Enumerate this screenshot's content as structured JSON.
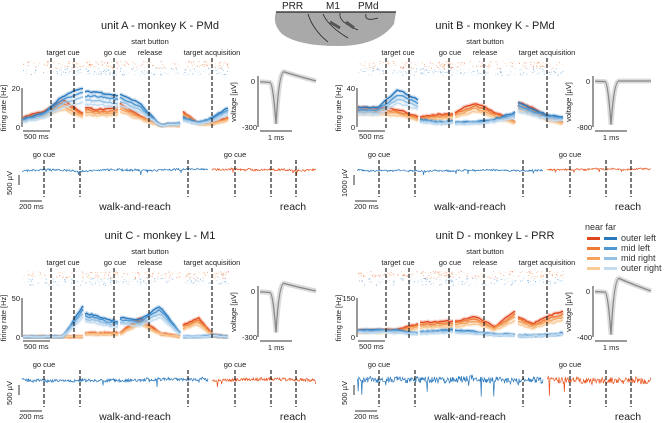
{
  "brain": {
    "labels": [
      "PRR",
      "M1",
      "PMd"
    ]
  },
  "legend": {
    "header": "near far",
    "rows": [
      {
        "label": "outer left",
        "near": "#e0451e",
        "far": "#2a78bd"
      },
      {
        "label": "mid left",
        "near": "#ef7a35",
        "far": "#4d97d3"
      },
      {
        "label": "mid right",
        "near": "#f5a35e",
        "far": "#93c1e5"
      },
      {
        "label": "outer right",
        "near": "#f9cb98",
        "far": "#c3dcf0"
      }
    ]
  },
  "chart_data": [
    {
      "type": "line",
      "title": "unit A - monkey K - PMd",
      "events": [
        "target cue",
        "go cue",
        "start button",
        "release",
        "target acquisition"
      ],
      "ylabel": "firing rate [Hz]",
      "ylim": [
        0,
        20
      ],
      "yticks": [
        "0",
        "20"
      ],
      "time_scale": "500 ms",
      "near_profile": [
        5,
        8,
        14,
        7,
        10,
        9,
        9,
        10,
        12,
        6,
        1,
        1,
        8,
        2,
        2,
        5
      ],
      "far_profile": [
        4,
        7,
        16,
        20,
        18,
        18,
        17,
        16,
        17,
        12,
        1,
        2,
        5,
        2,
        5,
        10
      ],
      "waveform": {
        "ylabel": "voltage [µV]",
        "ylim": [
          -300,
          0
        ],
        "yticks": [
          "0",
          "-300"
        ],
        "time_scale": "1 ms",
        "trough": -280,
        "peak": 60
      },
      "lfp": {
        "event": "go cue",
        "amp_scale": "500 µV",
        "time_scale": "200 ms",
        "conditions": [
          "walk-and-reach",
          "reach"
        ],
        "noise": 0.5
      }
    },
    {
      "type": "line",
      "title": "unit B - monkey K - PMd",
      "events": [
        "target cue",
        "go cue",
        "start button",
        "release",
        "target acquisition"
      ],
      "ylabel": "firing rate [Hz]",
      "ylim": [
        0,
        40
      ],
      "yticks": [
        "0",
        "40"
      ],
      "time_scale": "500 ms",
      "near_profile": [
        20,
        20,
        18,
        10,
        10,
        12,
        13,
        14,
        15,
        25,
        15,
        5,
        25,
        20,
        10,
        5
      ],
      "far_profile": [
        20,
        20,
        38,
        28,
        8,
        6,
        5,
        6,
        5,
        5,
        8,
        15,
        25,
        18,
        12,
        10
      ],
      "waveform": {
        "ylabel": "voltage [µV]",
        "ylim": [
          -800,
          0
        ],
        "yticks": [
          "0",
          "-800"
        ],
        "time_scale": "1 ms",
        "trough": -760,
        "peak": 0
      },
      "lfp": {
        "event": "go cue",
        "amp_scale": "1000 µV",
        "time_scale": "200 ms",
        "conditions": [
          "walk-and-reach",
          "reach"
        ],
        "noise": 0.4
      }
    },
    {
      "type": "line",
      "title": "unit C - monkey L - M1",
      "events": [
        "target cue",
        "go cue",
        "start button",
        "release",
        "target acquisition"
      ],
      "ylabel": "firing rate [Hz]",
      "ylim": [
        0,
        50
      ],
      "yticks": [
        "0",
        "50"
      ],
      "time_scale": "500 ms",
      "near_profile": [
        0,
        0,
        0,
        0,
        5,
        5,
        5,
        5,
        5,
        25,
        5,
        0,
        15,
        25,
        2,
        0
      ],
      "far_profile": [
        0,
        0,
        0,
        40,
        30,
        28,
        22,
        20,
        25,
        22,
        40,
        5,
        0,
        0,
        2,
        0
      ],
      "waveform": {
        "ylabel": "voltage [µV]",
        "ylim": [
          -300,
          0
        ],
        "yticks": [
          "0",
          "-300"
        ],
        "time_scale": "1 ms",
        "trough": -270,
        "peak": 50
      },
      "lfp": {
        "event": "go cue",
        "amp_scale": "500 µV",
        "time_scale": "200 ms",
        "conditions": [
          "walk-and-reach",
          "reach"
        ],
        "noise": 0.8
      }
    },
    {
      "type": "line",
      "title": "unit D - monkey L - PRR",
      "events": [
        "target cue",
        "go cue",
        "start button",
        "release",
        "target acquisition"
      ],
      "ylabel": "firing rate [Hz]",
      "ylim": [
        0,
        150
      ],
      "yticks": [
        "0",
        "150"
      ],
      "time_scale": "500 ms",
      "near_profile": [
        25,
        28,
        30,
        50,
        55,
        57,
        60,
        62,
        60,
        80,
        40,
        100,
        80,
        50,
        80,
        100
      ],
      "far_profile": [
        25,
        28,
        25,
        15,
        20,
        22,
        25,
        28,
        25,
        20,
        10,
        10,
        5,
        5,
        8,
        15
      ],
      "waveform": {
        "ylabel": "voltage [µV]",
        "ylim": [
          -400,
          0
        ],
        "yticks": [
          "0",
          "-400"
        ],
        "time_scale": "1 ms",
        "trough": -380,
        "peak": 110
      },
      "lfp": {
        "event": "go cue",
        "amp_scale": "500 µV",
        "time_scale": "200 ms",
        "conditions": [
          "walk-and-reach",
          "reach"
        ],
        "noise": 1.6
      }
    }
  ]
}
